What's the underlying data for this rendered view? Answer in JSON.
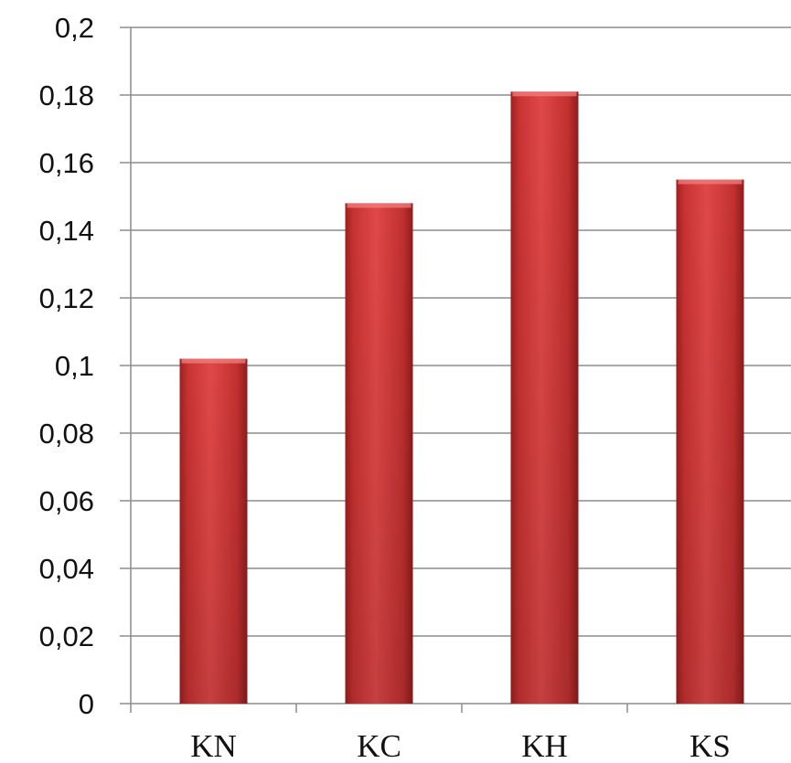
{
  "chart_data": {
    "type": "bar",
    "title": "",
    "xlabel": "",
    "ylabel": "",
    "categories": [
      "KN",
      "KC",
      "KH",
      "KS"
    ],
    "values": [
      0.102,
      0.148,
      0.181,
      0.155
    ],
    "ylim": [
      0,
      0.2
    ],
    "yticks": [
      0,
      0.02,
      0.04,
      0.06,
      0.08,
      0.1,
      0.12,
      0.14,
      0.16,
      0.18,
      0.2
    ],
    "ytick_labels": [
      "0",
      "0,02",
      "0,04",
      "0,06",
      "0,08",
      "0,1",
      "0,12",
      "0,14",
      "0,16",
      "0,18",
      "0,2"
    ],
    "grid": true,
    "legend": "none",
    "bar_color": "#d63a3a",
    "grid_color": "#8c8c8c",
    "axis_color": "#8c8c8c"
  }
}
